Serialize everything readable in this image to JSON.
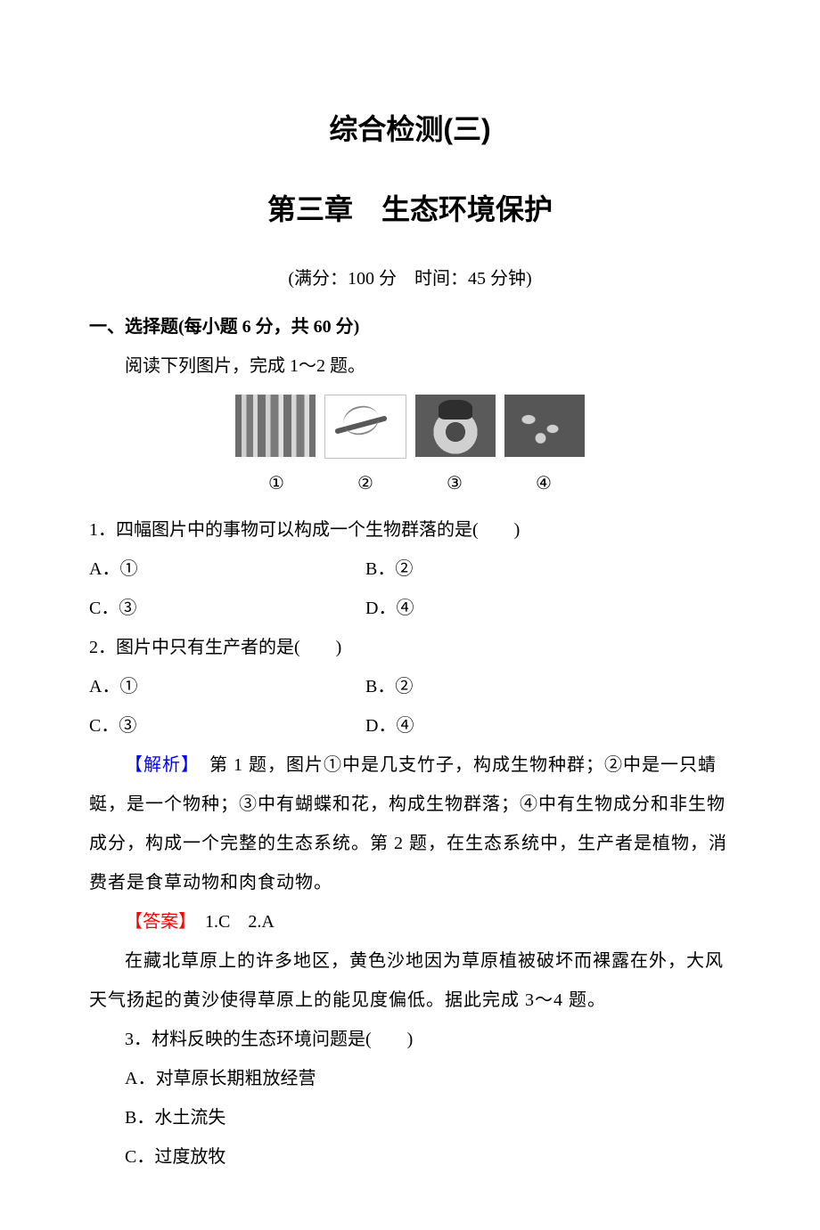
{
  "title_main": "综合检测(三)",
  "title_sub": "第三章　生态环境保护",
  "meta": "(满分：100 分　时间：45 分钟)",
  "section1_heading": "一、选择题(每小题 6 分，共 60 分)",
  "intro1": "阅读下列图片，完成 1～2 题。",
  "images": {
    "labels": [
      "①",
      "②",
      "③",
      "④"
    ]
  },
  "q1": {
    "stem": "1．四幅图片中的事物可以构成一个生物群落的是(　　)",
    "A": "A．①",
    "B": "B．②",
    "C": "C．③",
    "D": "D．④"
  },
  "q2": {
    "stem": "2．图片中只有生产者的是(　　)",
    "A": "A．①",
    "B": "B．②",
    "C": "C．③",
    "D": "D．④"
  },
  "analysis1_label": "【解析】",
  "analysis1_text": "　第 1 题，图片①中是几支竹子，构成生物种群；②中是一只蜻蜓，是一个物种；③中有蝴蝶和花，构成生物群落；④中有生物成分和非生物成分，构成一个完整的生态系统。第 2 题，在生态系统中，生产者是植物，消费者是食草动物和肉食动物。",
  "answer1_label": "【答案】",
  "answer1_text": "　1.C　2.A",
  "intro2": "在藏北草原上的许多地区，黄色沙地因为草原植被破坏而裸露在外，大风天气扬起的黄沙使得草原上的能见度偏低。据此完成 3～4 题。",
  "q3": {
    "stem": "3．材料反映的生态环境问题是(　　)",
    "A": "A．对草原长期粗放经营",
    "B": "B．水土流失",
    "C": "C．过度放牧"
  },
  "colors": {
    "analysis": "#0000ff",
    "answer": "#ff0000",
    "text": "#000000",
    "background": "#ffffff"
  }
}
